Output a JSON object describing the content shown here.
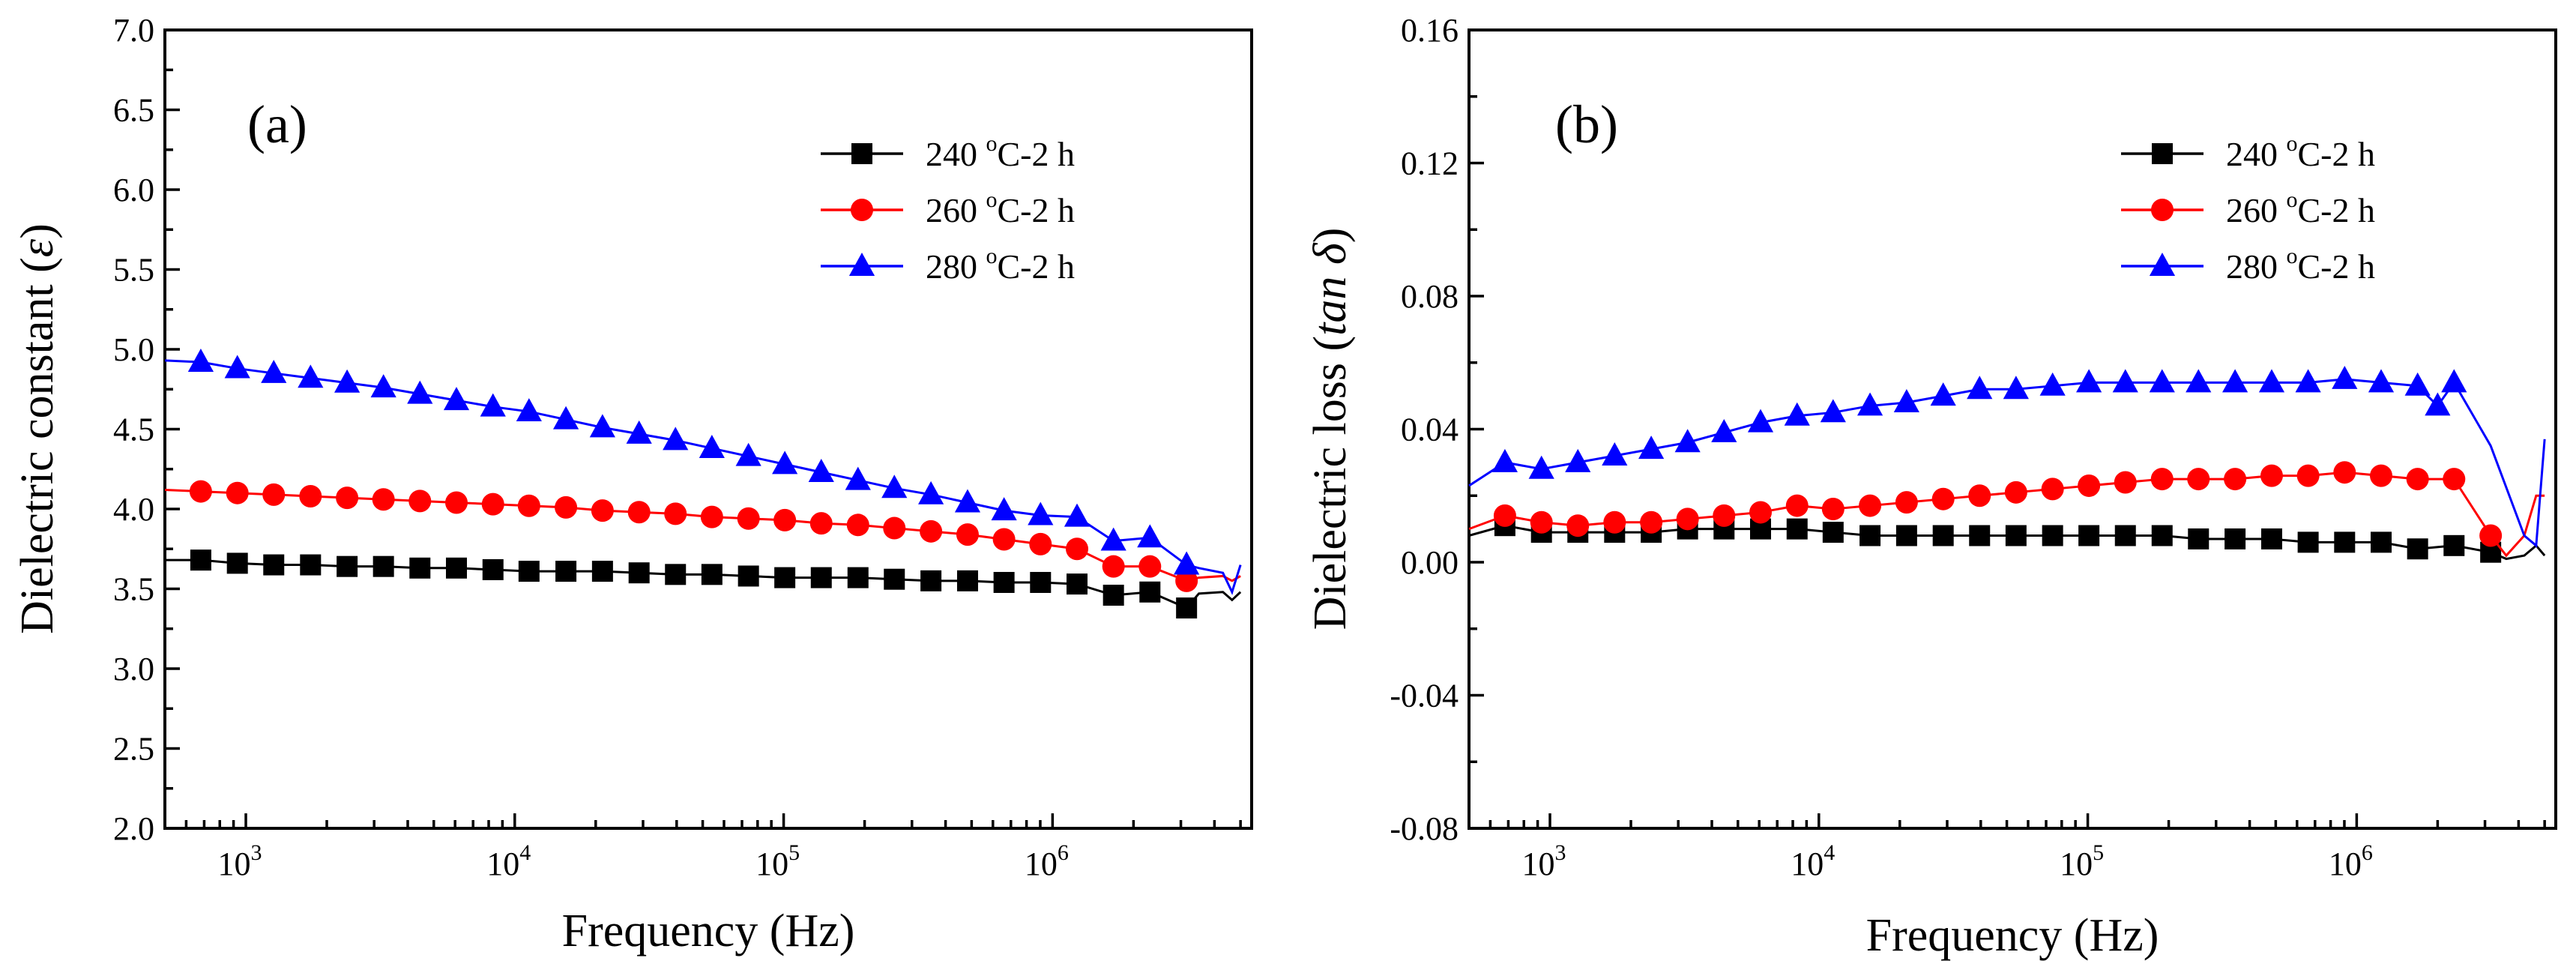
{
  "chart_data": [
    {
      "type": "line",
      "panel_label": "(a)",
      "xlabel": "Frequency (Hz)",
      "ylabel": {
        "main": "Dielectric constant (",
        "symbol": "ε",
        "close": ")"
      },
      "xscale": "log",
      "xlim": [
        500,
        5500000
      ],
      "ylim": [
        2.0,
        7.0
      ],
      "ytick_values": [
        2.0,
        2.5,
        3.0,
        3.5,
        4.0,
        4.5,
        5.0,
        5.5,
        6.0,
        6.5,
        7.0
      ],
      "ytick_labels": [
        "2.0",
        "2.5",
        "3.0",
        "3.5",
        "4.0",
        "4.5",
        "5.0",
        "5.5",
        "6.0",
        "6.5",
        "7.0"
      ],
      "xtick_values": [
        1000,
        10000,
        100000,
        1000000
      ],
      "xtick_labels": [
        {
          "base": "10",
          "exp": "3"
        },
        {
          "base": "10",
          "exp": "4"
        },
        {
          "base": "10",
          "exp": "5"
        },
        {
          "base": "10",
          "exp": "6"
        }
      ],
      "legend_position": "top-right",
      "series": [
        {
          "name": "240 °C-2 h",
          "label_temp": "240 ",
          "label_unit": "C-2 h",
          "degree": "o",
          "color": "#000000",
          "marker": "square",
          "x": [
            500,
            680,
            930,
            1270,
            1740,
            2380,
            3250,
            4440,
            6070,
            8300,
            11300,
            15500,
            21200,
            29000,
            39600,
            54100,
            74000,
            101000,
            138000,
            189000,
            258000,
            353000,
            483000,
            660000,
            902000,
            1233000,
            1685000,
            2302000,
            3150000,
            3500000,
            4300000,
            4650000,
            5000000
          ],
          "y": [
            3.68,
            3.68,
            3.66,
            3.65,
            3.65,
            3.64,
            3.64,
            3.63,
            3.63,
            3.62,
            3.61,
            3.61,
            3.61,
            3.6,
            3.59,
            3.59,
            3.58,
            3.57,
            3.57,
            3.57,
            3.56,
            3.55,
            3.55,
            3.54,
            3.54,
            3.53,
            3.46,
            3.48,
            3.38,
            3.47,
            3.48,
            3.43,
            3.48
          ]
        },
        {
          "name": "260 °C-2 h",
          "label_temp": "260 ",
          "label_unit": "C-2 h",
          "degree": "o",
          "color": "#ff0000",
          "marker": "circle",
          "x": [
            500,
            680,
            930,
            1270,
            1740,
            2380,
            3250,
            4440,
            6070,
            8300,
            11300,
            15500,
            21200,
            29000,
            39600,
            54100,
            74000,
            101000,
            138000,
            189000,
            258000,
            353000,
            483000,
            660000,
            902000,
            1233000,
            1685000,
            2302000,
            3150000,
            3500000,
            4300000,
            4650000,
            5000000
          ],
          "y": [
            4.12,
            4.11,
            4.1,
            4.09,
            4.08,
            4.07,
            4.06,
            4.05,
            4.04,
            4.03,
            4.02,
            4.01,
            3.99,
            3.98,
            3.97,
            3.95,
            3.94,
            3.93,
            3.91,
            3.9,
            3.88,
            3.86,
            3.84,
            3.81,
            3.78,
            3.75,
            3.64,
            3.64,
            3.55,
            3.57,
            3.58,
            3.55,
            3.58
          ]
        },
        {
          "name": "280 °C-2 h",
          "label_temp": "280 ",
          "label_unit": "C-2 h",
          "degree": "o",
          "color": "#0000ff",
          "marker": "triangle",
          "x": [
            500,
            680,
            930,
            1270,
            1740,
            2380,
            3250,
            4440,
            6070,
            8300,
            11300,
            15500,
            21200,
            29000,
            39600,
            54100,
            74000,
            101000,
            138000,
            189000,
            258000,
            353000,
            483000,
            660000,
            902000,
            1233000,
            1685000,
            2302000,
            3150000,
            3500000,
            4300000,
            4650000,
            5000000
          ],
          "y": [
            4.93,
            4.92,
            4.88,
            4.85,
            4.82,
            4.79,
            4.76,
            4.72,
            4.68,
            4.64,
            4.61,
            4.56,
            4.51,
            4.47,
            4.43,
            4.38,
            4.33,
            4.28,
            4.23,
            4.18,
            4.13,
            4.09,
            4.04,
            3.99,
            3.96,
            3.95,
            3.8,
            3.82,
            3.65,
            3.63,
            3.6,
            3.48,
            3.65
          ]
        }
      ]
    },
    {
      "type": "line",
      "panel_label": "(b)",
      "xlabel": "Frequency (Hz)",
      "ylabel": {
        "main": "Dielectric loss (",
        "symbol": "tan δ",
        "close": ")"
      },
      "xscale": "log",
      "xlim": [
        500,
        5500000
      ],
      "ylim": [
        -0.08,
        0.16
      ],
      "ytick_values": [
        -0.08,
        -0.04,
        0.0,
        0.04,
        0.08,
        0.12,
        0.16
      ],
      "ytick_labels": [
        "-0.08",
        "-0.04",
        "0.00",
        "0.04",
        "0.08",
        "0.12",
        "0.16"
      ],
      "xtick_values": [
        1000,
        10000,
        100000,
        1000000
      ],
      "xtick_labels": [
        {
          "base": "10",
          "exp": "3"
        },
        {
          "base": "10",
          "exp": "4"
        },
        {
          "base": "10",
          "exp": "5"
        },
        {
          "base": "10",
          "exp": "6"
        }
      ],
      "legend_position": "top-right",
      "series": [
        {
          "name": "240 °C-2 h",
          "label_temp": "240 ",
          "label_unit": "C-2 h",
          "degree": "o",
          "color": "#000000",
          "marker": "square",
          "x": [
            500,
            680,
            930,
            1270,
            1740,
            2380,
            3250,
            4440,
            6070,
            8300,
            11300,
            15500,
            21200,
            29000,
            39600,
            54100,
            74000,
            101000,
            138000,
            189000,
            258000,
            353000,
            483000,
            660000,
            902000,
            1233000,
            1685000,
            2302000,
            3150000,
            3600000,
            4200000,
            4650000,
            5000000
          ],
          "y": [
            0.008,
            0.011,
            0.009,
            0.009,
            0.009,
            0.009,
            0.01,
            0.01,
            0.01,
            0.01,
            0.009,
            0.008,
            0.008,
            0.008,
            0.008,
            0.008,
            0.008,
            0.008,
            0.008,
            0.008,
            0.007,
            0.007,
            0.007,
            0.006,
            0.006,
            0.006,
            0.004,
            0.005,
            0.003,
            0.001,
            0.002,
            0.005,
            0.002
          ]
        },
        {
          "name": "260 °C-2 h",
          "label_temp": "260 ",
          "label_unit": "C-2 h",
          "degree": "o",
          "color": "#ff0000",
          "marker": "circle",
          "x": [
            500,
            680,
            930,
            1270,
            1740,
            2380,
            3250,
            4440,
            6070,
            8300,
            11300,
            15500,
            21200,
            29000,
            39600,
            54100,
            74000,
            101000,
            138000,
            189000,
            258000,
            353000,
            483000,
            660000,
            902000,
            1233000,
            1685000,
            2302000,
            3150000,
            3600000,
            4200000,
            4650000,
            5000000
          ],
          "y": [
            0.01,
            0.014,
            0.012,
            0.011,
            0.012,
            0.012,
            0.013,
            0.014,
            0.015,
            0.017,
            0.016,
            0.017,
            0.018,
            0.019,
            0.02,
            0.021,
            0.022,
            0.023,
            0.024,
            0.025,
            0.025,
            0.025,
            0.026,
            0.026,
            0.027,
            0.026,
            0.025,
            0.025,
            0.008,
            0.002,
            0.008,
            0.02,
            0.02
          ]
        },
        {
          "name": "280 °C-2 h",
          "label_temp": "280 ",
          "label_unit": "C-2 h",
          "degree": "o",
          "color": "#0000ff",
          "marker": "triangle",
          "x": [
            500,
            680,
            930,
            1270,
            1740,
            2380,
            3250,
            4440,
            6070,
            8300,
            11300,
            15500,
            21200,
            29000,
            39600,
            54100,
            74000,
            101000,
            138000,
            189000,
            258000,
            353000,
            483000,
            660000,
            902000,
            1233000,
            1685000,
            2000000,
            2302000,
            3150000,
            4200000,
            4650000,
            5000000
          ],
          "y": [
            0.023,
            0.03,
            0.028,
            0.03,
            0.032,
            0.034,
            0.036,
            0.039,
            0.042,
            0.044,
            0.045,
            0.047,
            0.048,
            0.05,
            0.052,
            0.052,
            0.053,
            0.054,
            0.054,
            0.054,
            0.054,
            0.054,
            0.054,
            0.054,
            0.055,
            0.054,
            0.053,
            0.047,
            0.054,
            0.035,
            0.008,
            0.005,
            0.037
          ]
        }
      ]
    }
  ]
}
